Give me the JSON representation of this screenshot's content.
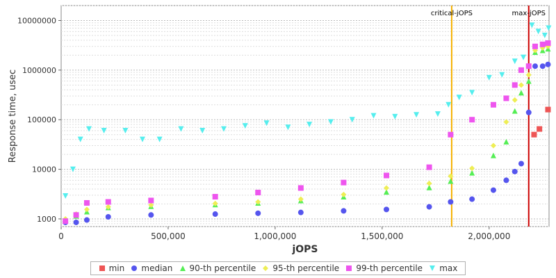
{
  "chart_data": {
    "type": "scatter",
    "xlabel": "jOPS",
    "ylabel": "Response time, usec",
    "xlim": [
      0,
      2280000
    ],
    "ylim": [
      700,
      20000000
    ],
    "yscale": "log",
    "grid": true,
    "x_ticks": [
      {
        "value": 0,
        "label": "0"
      },
      {
        "value": 500000,
        "label": "500,000"
      },
      {
        "value": 1000000,
        "label": "1,000,000"
      },
      {
        "value": 1500000,
        "label": "1,500,000"
      },
      {
        "value": 2000000,
        "label": "2,000,000"
      }
    ],
    "y_ticks": [
      {
        "value": 1000,
        "label": "1000"
      },
      {
        "value": 10000,
        "label": "10000"
      },
      {
        "value": 100000,
        "label": "100000"
      },
      {
        "value": 1000000,
        "label": "1000000"
      },
      {
        "value": 10000000,
        "label": "10000000"
      }
    ],
    "vlines": [
      {
        "x": 1825000,
        "label": "critical-jOPS",
        "color": "#f5b000"
      },
      {
        "x": 2185000,
        "label": "max-jOPS",
        "color": "#cc0000"
      }
    ],
    "legend_position": "bottom",
    "series": [
      {
        "name": "min",
        "color": "#ee5555",
        "marker": "square",
        "x": [
          2210000,
          2235000,
          2275000
        ],
        "values": [
          50000,
          65000,
          160000
        ]
      },
      {
        "name": "median",
        "color": "#5555ee",
        "marker": "circle",
        "x": [
          20000,
          70000,
          120000,
          220000,
          420000,
          720000,
          920000,
          1120000,
          1320000,
          1520000,
          1720000,
          1820000,
          1920000,
          2020000,
          2080000,
          2120000,
          2150000,
          2185000,
          2215000,
          2250000,
          2275000
        ],
        "values": [
          850,
          850,
          950,
          1100,
          1200,
          1250,
          1300,
          1350,
          1450,
          1550,
          1750,
          2200,
          2500,
          3800,
          6000,
          9000,
          13000,
          140000,
          1200000,
          1200000,
          1300000
        ]
      },
      {
        "name": "90-th percentile",
        "color": "#55ee55",
        "marker": "triangle-up",
        "x": [
          20000,
          70000,
          120000,
          220000,
          420000,
          720000,
          920000,
          1120000,
          1320000,
          1520000,
          1720000,
          1820000,
          1920000,
          2020000,
          2080000,
          2120000,
          2150000,
          2185000,
          2215000,
          2250000,
          2275000
        ],
        "values": [
          950,
          1150,
          1400,
          1700,
          1800,
          1950,
          2100,
          2350,
          2800,
          3500,
          4300,
          5800,
          8500,
          19000,
          36000,
          150000,
          350000,
          600000,
          2300000,
          2500000,
          2700000
        ]
      },
      {
        "name": "95-th percentile",
        "color": "#eeee55",
        "marker": "diamond",
        "x": [
          20000,
          70000,
          120000,
          220000,
          420000,
          720000,
          920000,
          1120000,
          1320000,
          1520000,
          1720000,
          1820000,
          1920000,
          2020000,
          2080000,
          2120000,
          2150000,
          2185000,
          2215000,
          2250000,
          2275000
        ],
        "values": [
          1000,
          1250,
          1550,
          1750,
          1900,
          2050,
          2200,
          2500,
          3100,
          4200,
          5200,
          7300,
          10500,
          30000,
          90000,
          250000,
          500000,
          800000,
          2500000,
          2800000,
          3000000
        ]
      },
      {
        "name": "99-th percentile",
        "color": "#ee55ee",
        "marker": "square",
        "x": [
          20000,
          70000,
          120000,
          220000,
          420000,
          720000,
          920000,
          1120000,
          1320000,
          1520000,
          1720000,
          1820000,
          1920000,
          2020000,
          2080000,
          2120000,
          2150000,
          2185000,
          2215000,
          2250000,
          2275000
        ],
        "values": [
          900,
          1200,
          2100,
          2200,
          2350,
          2800,
          3400,
          4200,
          5400,
          7500,
          11000,
          50000,
          100000,
          200000,
          270000,
          500000,
          1000000,
          1200000,
          3000000,
          3300000,
          3500000
        ]
      },
      {
        "name": "max",
        "color": "#55eeee",
        "marker": "triangle-down",
        "x": [
          20000,
          55000,
          90000,
          130000,
          200000,
          300000,
          380000,
          460000,
          560000,
          660000,
          760000,
          860000,
          960000,
          1060000,
          1160000,
          1260000,
          1360000,
          1460000,
          1560000,
          1660000,
          1760000,
          1810000,
          1860000,
          1920000,
          2000000,
          2060000,
          2120000,
          2160000,
          2200000,
          2230000,
          2260000,
          2278000
        ],
        "values": [
          2900,
          10000,
          40000,
          65000,
          60000,
          60000,
          40000,
          40000,
          65000,
          60000,
          65000,
          75000,
          85000,
          70000,
          80000,
          90000,
          100000,
          120000,
          115000,
          125000,
          130000,
          200000,
          280000,
          350000,
          700000,
          800000,
          1500000,
          1800000,
          8000000,
          6000000,
          5000000,
          7000000
        ]
      }
    ]
  }
}
